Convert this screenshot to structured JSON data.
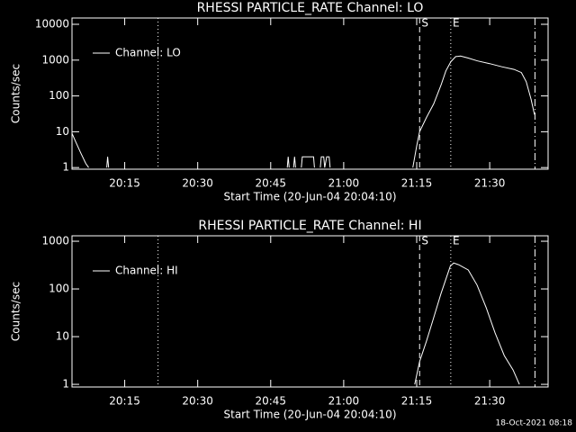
{
  "footer": "18-Oct-2021 08:18",
  "chart_data": [
    {
      "type": "line",
      "title": "RHESSI PARTICLE_RATE Channel: LO",
      "xlabel": "Start Time (20-Jun-04 20:04:10)",
      "ylabel": "Counts/sec",
      "log_y": true,
      "color": "#ffffff",
      "legend": "upper left",
      "xlim": [
        4.17,
        102
      ],
      "ylim": [
        0.9,
        15000
      ],
      "xticks": [
        {
          "value": 15,
          "label": "20:15"
        },
        {
          "value": 30,
          "label": "20:30"
        },
        {
          "value": 45,
          "label": "20:45"
        },
        {
          "value": 60,
          "label": "21:00"
        },
        {
          "value": 75,
          "label": "21:15"
        },
        {
          "value": 90,
          "label": "21:30"
        }
      ],
      "yticks": [
        1,
        10,
        100,
        1000,
        10000
      ],
      "markers": [
        {
          "x": 21.85,
          "style": "dotted"
        },
        {
          "x": 75.6,
          "style": "dashed",
          "label": "S"
        },
        {
          "x": 82,
          "style": "dotted",
          "label": "E"
        },
        {
          "x": 99.3,
          "style": "dashdot"
        }
      ],
      "x": [
        4.17,
        5,
        6,
        7,
        7.6,
        8,
        11.3,
        11.5,
        11.7,
        12,
        48.4,
        48.6,
        48.8,
        49,
        49.7,
        49.9,
        50.1,
        50.3,
        51.3,
        51.5,
        53.8,
        54,
        54.2,
        55.2,
        55.4,
        55.9,
        56.1,
        56.5,
        57,
        57.2,
        57.4,
        74.2,
        75,
        75.6,
        77,
        78.5,
        80,
        81,
        82,
        83,
        84,
        85.5,
        87.5,
        90,
        92.5,
        95,
        96.5,
        97.5,
        98.5,
        99.2
      ],
      "series": [
        {
          "name": "Channel: LO",
          "color": "#ffffff",
          "values": [
            9,
            5,
            2.5,
            1.3,
            1,
            null,
            1,
            2,
            1,
            null,
            1,
            2,
            1,
            null,
            1,
            2,
            1,
            null,
            1,
            2,
            2,
            1,
            null,
            1,
            2,
            2,
            1,
            2,
            2,
            1,
            null,
            1,
            4,
            10,
            25,
            60,
            200,
            500,
            900,
            1250,
            1300,
            1150,
            950,
            800,
            650,
            550,
            450,
            250,
            80,
            30
          ]
        }
      ]
    },
    {
      "type": "line",
      "title": "RHESSI PARTICLE_RATE Channel: HI",
      "xlabel": "Start Time (20-Jun-04 20:04:10)",
      "ylabel": "Counts/sec",
      "log_y": true,
      "color": "#ffffff",
      "legend": "upper left",
      "xlim": [
        4.17,
        102
      ],
      "ylim": [
        0.88,
        1300
      ],
      "xticks": [
        {
          "value": 15,
          "label": "20:15"
        },
        {
          "value": 30,
          "label": "20:30"
        },
        {
          "value": 45,
          "label": "20:45"
        },
        {
          "value": 60,
          "label": "21:00"
        },
        {
          "value": 75,
          "label": "21:15"
        },
        {
          "value": 90,
          "label": "21:30"
        }
      ],
      "yticks": [
        1,
        10,
        100,
        1000
      ],
      "markers": [
        {
          "x": 21.85,
          "style": "dotted"
        },
        {
          "x": 75.6,
          "style": "dashed",
          "label": "S"
        },
        {
          "x": 82,
          "style": "dotted",
          "label": "E"
        },
        {
          "x": 99.3,
          "style": "dashdot"
        }
      ],
      "x": [
        74.6,
        75.6,
        77,
        78.2,
        80,
        81.9,
        82.6,
        83.7,
        85.6,
        87.4,
        89.3,
        91.1,
        93,
        94.8,
        96.1
      ],
      "series": [
        {
          "name": "Channel: HI",
          "color": "#ffffff",
          "values": [
            1,
            3,
            8,
            20,
            80,
            300,
            350,
            320,
            250,
            120,
            40,
            12,
            4,
            2,
            1
          ]
        }
      ]
    }
  ]
}
